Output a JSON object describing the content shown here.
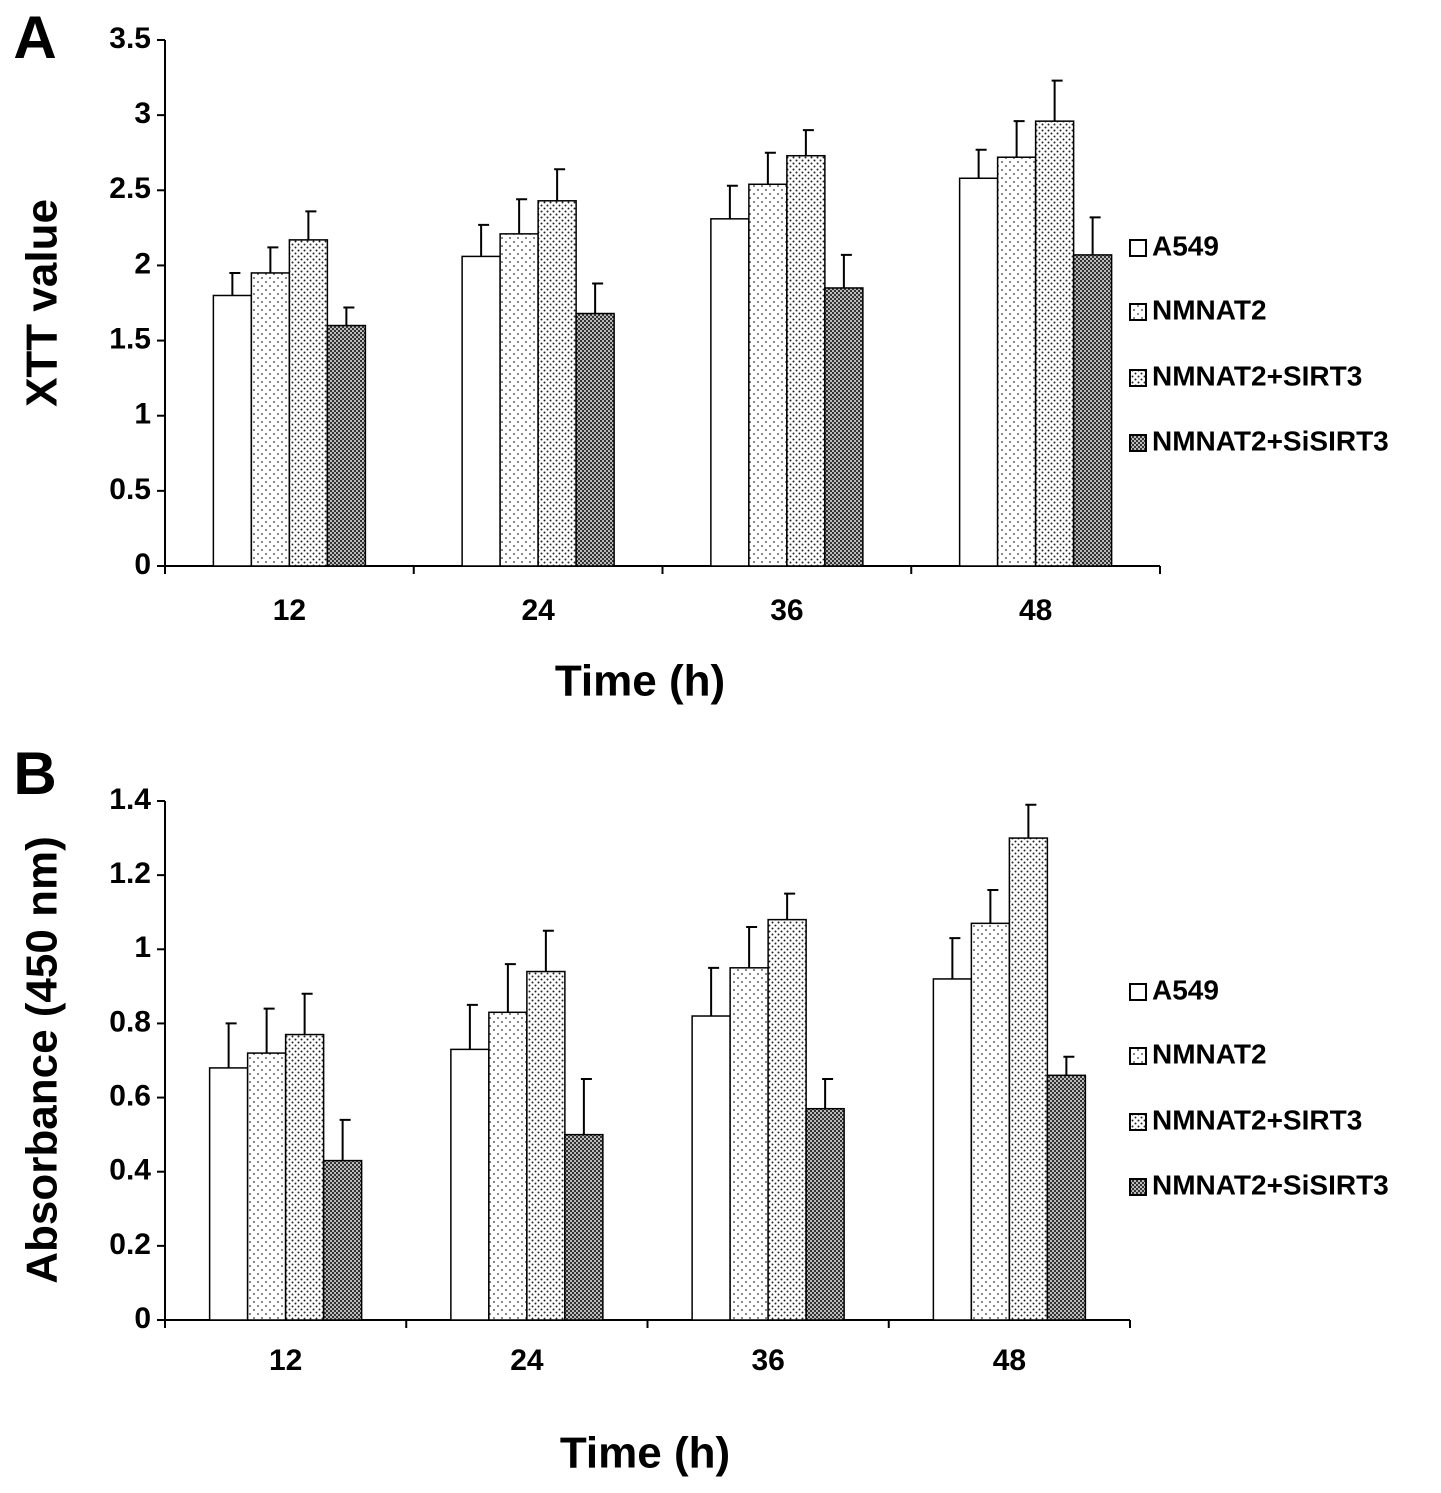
{
  "chart_data": [
    {
      "type": "bar",
      "panel_label": "A",
      "x_label": "Time (h)",
      "y_label": "XTT value",
      "categories": [
        "12",
        "24",
        "36",
        "48"
      ],
      "series": [
        {
          "name": "A549",
          "color": "#ffffff",
          "values": [
            1.8,
            2.06,
            2.31,
            2.58
          ],
          "errors": [
            0.15,
            0.21,
            0.22,
            0.19
          ]
        },
        {
          "name": "NMNAT2",
          "color": "#ffffff",
          "values": [
            1.95,
            2.21,
            2.54,
            2.72
          ],
          "errors": [
            0.17,
            0.23,
            0.21,
            0.24
          ]
        },
        {
          "name": "NMNAT2+SIRT3",
          "color": "#ffffff",
          "values": [
            2.17,
            2.43,
            2.73,
            2.96
          ],
          "errors": [
            0.19,
            0.21,
            0.17,
            0.27
          ]
        },
        {
          "name": "NMNAT2+SiSIRT3",
          "color": "#ffffff",
          "values": [
            1.6,
            1.68,
            1.85,
            2.07
          ],
          "errors": [
            0.12,
            0.2,
            0.22,
            0.25
          ]
        }
      ],
      "ylim": [
        0,
        3.5
      ],
      "yticks": [
        0,
        0.5,
        1,
        1.5,
        2,
        2.5,
        3,
        3.5
      ],
      "grid": false,
      "legend": "right"
    },
    {
      "type": "bar",
      "panel_label": "B",
      "x_label": "Time (h)",
      "y_label": "Absorbance (450 nm)",
      "categories": [
        "12",
        "24",
        "36",
        "48"
      ],
      "series": [
        {
          "name": "A549",
          "color": "#ffffff",
          "values": [
            0.68,
            0.73,
            0.82,
            0.92
          ],
          "errors": [
            0.12,
            0.12,
            0.13,
            0.11
          ]
        },
        {
          "name": "NMNAT2",
          "color": "#ffffff",
          "values": [
            0.72,
            0.83,
            0.95,
            1.07
          ],
          "errors": [
            0.12,
            0.13,
            0.11,
            0.09
          ]
        },
        {
          "name": "NMNAT2+SIRT3",
          "color": "#ffffff",
          "values": [
            0.77,
            0.94,
            1.08,
            1.3
          ],
          "errors": [
            0.11,
            0.11,
            0.07,
            0.09
          ]
        },
        {
          "name": "NMNAT2+SiSIRT3",
          "color": "#ffffff",
          "values": [
            0.43,
            0.5,
            0.57,
            0.66
          ],
          "errors": [
            0.11,
            0.15,
            0.08,
            0.05
          ]
        }
      ],
      "ylim": [
        0,
        1.4
      ],
      "yticks": [
        0,
        0.2,
        0.4,
        0.6,
        0.8,
        1,
        1.2,
        1.4
      ],
      "grid": false,
      "legend": "right"
    }
  ]
}
